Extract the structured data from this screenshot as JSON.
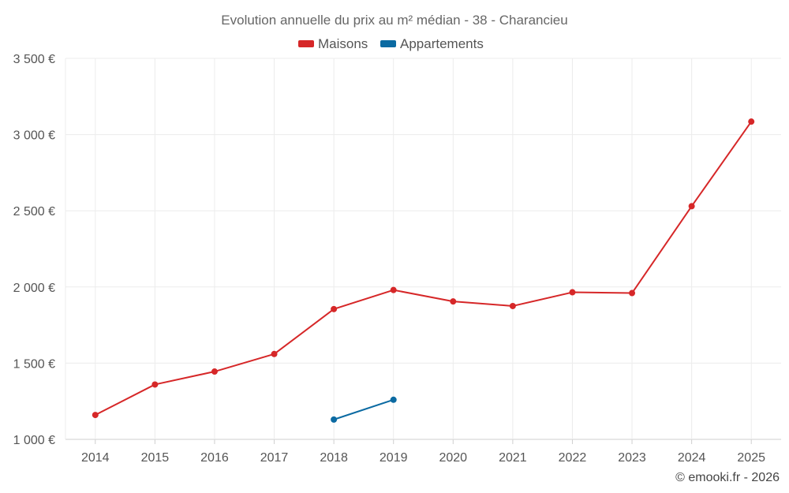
{
  "chart_data": {
    "type": "line",
    "title": "Evolution annuelle du prix au m² médian - 38 - Charancieu",
    "categories": [
      "2014",
      "2015",
      "2016",
      "2017",
      "2018",
      "2019",
      "2020",
      "2021",
      "2022",
      "2023",
      "2024",
      "2025"
    ],
    "series": [
      {
        "name": "Maisons",
        "color": "#d62728",
        "values": [
          1160,
          1360,
          1445,
          1560,
          1855,
          1980,
          1905,
          1875,
          1965,
          1960,
          2530,
          3085
        ]
      },
      {
        "name": "Appartements",
        "color": "#0b6aa2",
        "values": [
          null,
          null,
          null,
          null,
          1130,
          1260,
          null,
          null,
          null,
          null,
          null,
          null
        ]
      }
    ],
    "ylim": [
      1000,
      3500
    ],
    "yticks": [
      1000,
      1500,
      2000,
      2500,
      3000,
      3500
    ],
    "ytick_labels": [
      "1 000 €",
      "1 500 €",
      "2 000 €",
      "2 500 €",
      "3 000 €",
      "3 500 €"
    ],
    "xlabel": "",
    "ylabel": "",
    "grid": true,
    "legend": "top-center"
  },
  "credit": "© emooki.fr - 2026"
}
